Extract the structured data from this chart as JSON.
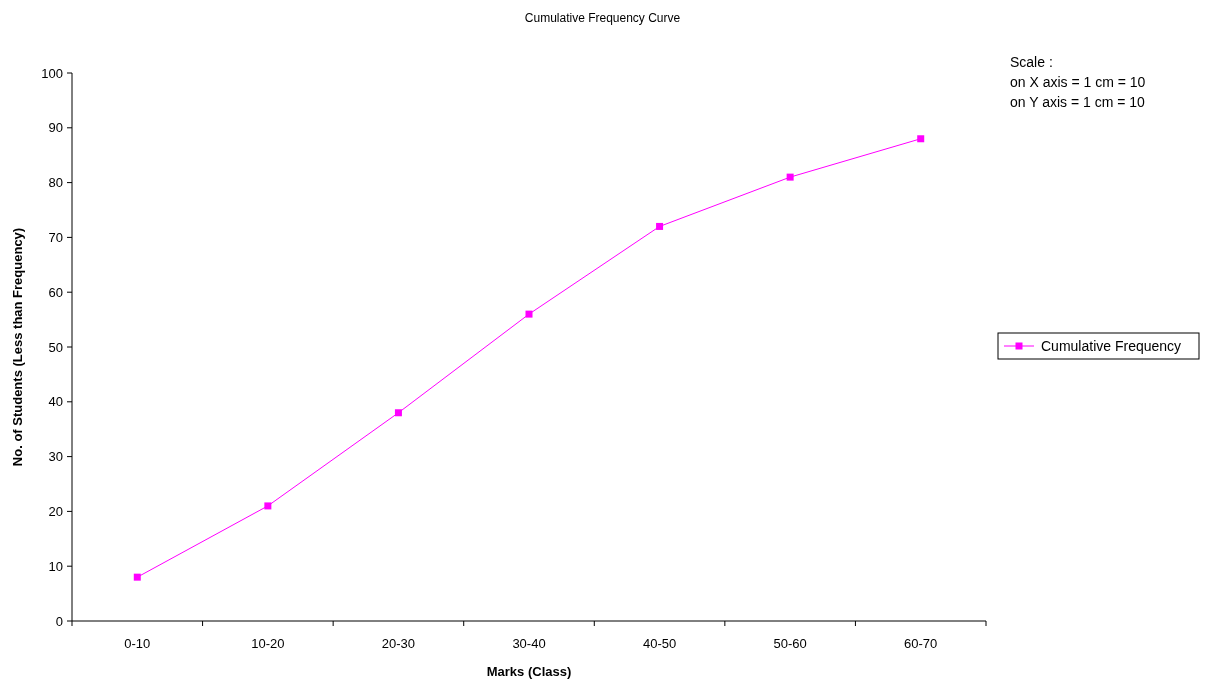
{
  "chart_data": {
    "type": "line",
    "title": "Cumulative Frequency Curve",
    "xlabel": "Marks (Class)",
    "ylabel": "No. of Students (Less than Frequency)",
    "categories": [
      "0-10",
      "10-20",
      "20-30",
      "30-40",
      "40-50",
      "50-60",
      "60-70"
    ],
    "series": [
      {
        "name": "Cumulative Frequency",
        "color": "#ff00ff",
        "values": [
          8,
          21,
          38,
          56,
          72,
          81,
          88
        ]
      }
    ],
    "ylim": [
      0,
      100
    ],
    "yticks": [
      0,
      10,
      20,
      30,
      40,
      50,
      60,
      70,
      80,
      90,
      100
    ],
    "grid": false,
    "legend": "right",
    "marker": "square",
    "line_style": "solid",
    "annotations": [
      "Scale :",
      "on X axis = 1 cm = 10",
      "on Y axis = 1 cm = 10"
    ]
  }
}
